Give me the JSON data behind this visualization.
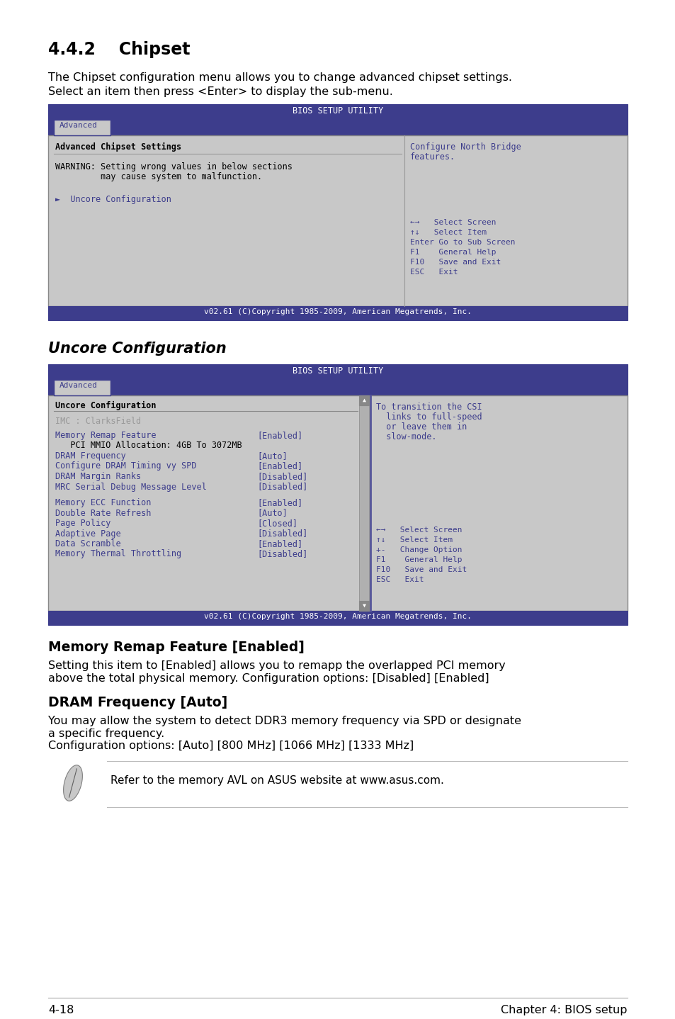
{
  "bg_color": "#ffffff",
  "header_blue": "#3d3d8c",
  "bios_bg": "#c8c8c8",
  "bios_text_blue": "#3d3d8c",
  "section_442_title": "4.4.2    Chipset",
  "section_442_desc1": "The Chipset configuration menu allows you to change advanced chipset settings.",
  "section_442_desc2": "Select an item then press <Enter> to display the sub-menu.",
  "bios1_title": "BIOS SETUP UTILITY",
  "bios1_tab": "Advanced",
  "bios1_left_heading": "Advanced Chipset Settings",
  "bios1_warning1": "WARNING: Setting wrong values in below sections",
  "bios1_warning2": "         may cause system to malfunction.",
  "bios1_item": "►  Uncore Configuration",
  "bios1_right1": "Configure North Bridge",
  "bios1_right2": "features.",
  "bios1_nav1": "←→   Select Screen",
  "bios1_nav2": "↑↓   Select Item",
  "bios1_nav3": "Enter Go to Sub Screen",
  "bios1_nav4": "F1    General Help",
  "bios1_nav5": "F10   Save and Exit",
  "bios1_nav6": "ESC   Exit",
  "bios1_footer": "v02.61 (C)Copyright 1985-2009, American Megatrends, Inc.",
  "section_uncore_title": "Uncore Configuration",
  "bios2_title": "BIOS SETUP UTILITY",
  "bios2_tab": "Advanced",
  "bios2_left_heading": "Uncore Configuration",
  "bios2_imc": "IMC : ClarksField",
  "bios2_items": [
    [
      "Memory Remap Feature",
      "[Enabled]",
      "blue"
    ],
    [
      "   PCI MMIO Allocation: 4GB To 3072MB",
      "",
      "black"
    ],
    [
      "DRAM Frequency",
      "[Auto]",
      "blue"
    ],
    [
      "Configure DRAM Timing vy SPD",
      "[Enabled]",
      "blue"
    ],
    [
      "DRAM Margin Ranks",
      "[Disabled]",
      "blue"
    ],
    [
      "MRC Serial Debug Message Level",
      "[Disabled]",
      "blue"
    ],
    [
      "",
      "",
      ""
    ],
    [
      "Memory ECC Function",
      "[Enabled]",
      "blue"
    ],
    [
      "Double Rate Refresh",
      "[Auto]",
      "blue"
    ],
    [
      "Page Policy",
      "[Closed]",
      "blue"
    ],
    [
      "Adaptive Page",
      "[Disabled]",
      "blue"
    ],
    [
      "Data Scramble",
      "[Enabled]",
      "blue"
    ],
    [
      "Memory Thermal Throttling",
      "[Disabled]",
      "blue"
    ]
  ],
  "bios2_right1": "To transition the CSI",
  "bios2_right2": "  links to full-speed",
  "bios2_right3": "  or leave them in",
  "bios2_right4": "  slow-mode.",
  "bios2_nav1": "←→   Select Screen",
  "bios2_nav2": "↑↓   Select Item",
  "bios2_nav3": "+-   Change Option",
  "bios2_nav4": "F1    General Help",
  "bios2_nav5": "F10   Save and Exit",
  "bios2_nav6": "ESC   Exit",
  "bios2_footer": "v02.61 (C)Copyright 1985-2009, American Megatrends, Inc.",
  "section_memory_title": "Memory Remap Feature [Enabled]",
  "section_memory_desc1": "Setting this item to [Enabled] allows you to remapp the overlapped PCI memory",
  "section_memory_desc2": "above the total physical memory. Configuration options: [Disabled] [Enabled]",
  "section_dram_title": "DRAM Frequency [Auto]",
  "section_dram_desc1": "You may allow the system to detect DDR3 memory frequency via SPD or designate",
  "section_dram_desc2": "a specific frequency.",
  "section_dram_desc3": "Configuration options: [Auto] [800 MHz] [1066 MHz] [1333 MHz]",
  "note_text": "Refer to the memory AVL on ASUS website at www.asus.com.",
  "footer_left": "4-18",
  "footer_right": "Chapter 4: BIOS setup"
}
